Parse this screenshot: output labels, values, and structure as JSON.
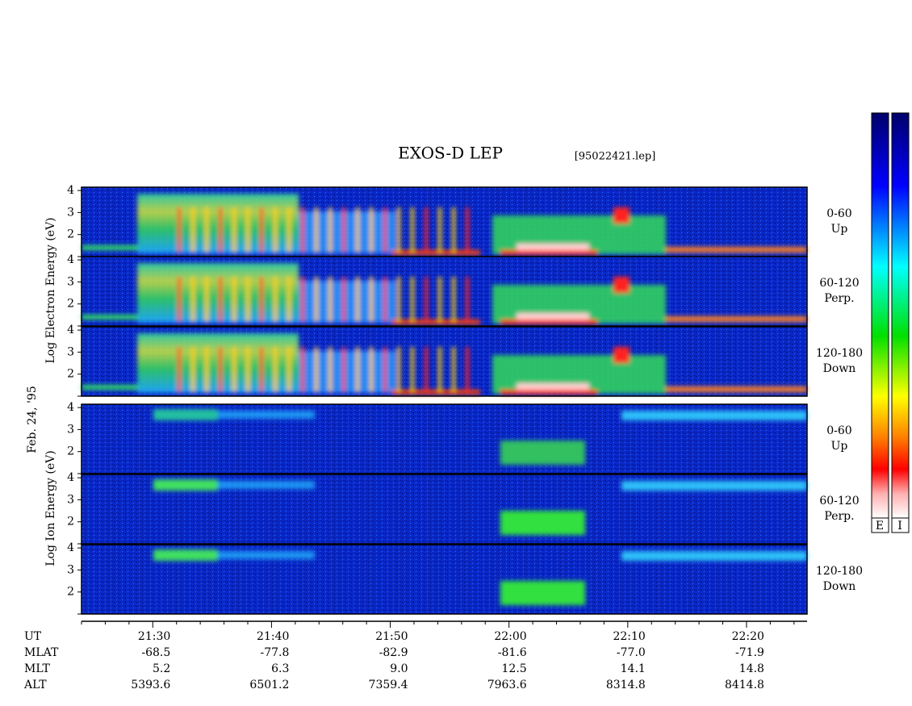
{
  "chart_data": {
    "type": "spectrogram",
    "title": "EXOS-D LEP",
    "file_label": "[95022421.lep]",
    "date_label": "Feb. 24, '95",
    "electron_axis_label": "Log Electron Energy (eV)",
    "ion_axis_label": "Log Ion Energy (eV)",
    "xlim": [
      1284,
      1345.1
    ],
    "xticks": [
      {
        "value": 1290,
        "label": "21:30"
      },
      {
        "value": 1300,
        "label": "21:40"
      },
      {
        "value": 1310,
        "label": "21:50"
      },
      {
        "value": 1320,
        "label": "22:00"
      },
      {
        "value": 1330,
        "label": "22:10"
      },
      {
        "value": 1340,
        "label": "22:20"
      }
    ],
    "xminorticks": [
      1284,
      1286,
      1288,
      1292,
      1294,
      1296,
      1298,
      1302,
      1304,
      1306,
      1308,
      1312,
      1314,
      1316,
      1318,
      1322,
      1324,
      1326,
      1328,
      1332,
      1334,
      1336,
      1338,
      1342,
      1344
    ],
    "ylim": [
      1,
      4.15
    ],
    "yticks": [
      2,
      3,
      4
    ],
    "unlabeled_yticks": [
      1
    ],
    "panels": [
      {
        "species": "electron",
        "label": [
          "0-60",
          "Up"
        ]
      },
      {
        "species": "electron",
        "label": [
          "60-120",
          "Perp."
        ]
      },
      {
        "species": "electron",
        "label": [
          "120-180",
          "Down"
        ]
      },
      {
        "species": "ion",
        "label": [
          "0-60",
          "Up"
        ]
      },
      {
        "species": "ion",
        "label": [
          "60-120",
          "Perp."
        ]
      },
      {
        "species": "ion",
        "label": [
          "120-180",
          "Down"
        ]
      }
    ],
    "table": {
      "row_names": [
        "UT",
        "MLAT",
        "MLT",
        "ALT"
      ],
      "MLAT": [
        "-68.5",
        "-77.8",
        "-82.9",
        "-81.6",
        "-77.0",
        "-71.9"
      ],
      "MLT": [
        "5.2",
        "6.3",
        "9.0",
        "12.5",
        "14.1",
        "14.8"
      ],
      "ALT": [
        "5393.6",
        "6501.2",
        "7359.4",
        "7963.6",
        "8314.8",
        "8414.8"
      ]
    },
    "colorbar_labels": [
      "E",
      "I"
    ]
  }
}
